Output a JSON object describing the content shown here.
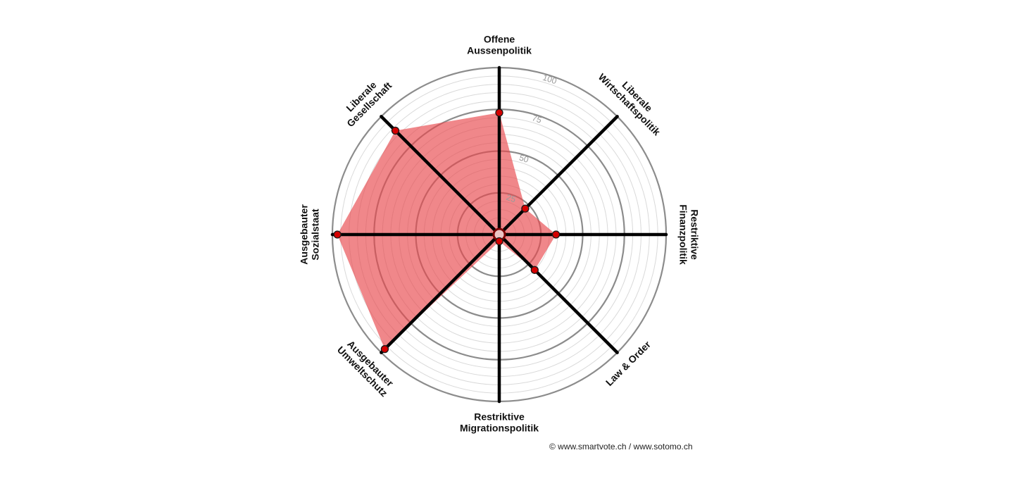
{
  "chart_data": {
    "type": "radar",
    "axes": [
      {
        "label": [
          "Offene",
          "Aussenpolitik"
        ],
        "value": 73
      },
      {
        "label": [
          "Liberale",
          "Wirtschaftspolitik"
        ],
        "value": 22
      },
      {
        "label": [
          "Restriktive",
          "Finanzpolitik"
        ],
        "value": 34
      },
      {
        "label": [
          "Law & Order"
        ],
        "value": 30
      },
      {
        "label": [
          "Restriktive",
          "Migrationspolitik"
        ],
        "value": 4
      },
      {
        "label": [
          "Ausgebauter",
          "Umweltschutz"
        ],
        "value": 97
      },
      {
        "label": [
          "Ausgebauter",
          "Sozialstaat"
        ],
        "value": 97
      },
      {
        "label": [
          "Liberale",
          "Gesellschaft"
        ],
        "value": 88
      }
    ],
    "rlim": [
      0,
      100
    ],
    "ticks": [
      "25",
      "50",
      "75",
      "100"
    ],
    "series_color": "#e8474b",
    "point_color": "#d40000",
    "credit": "© www.smartvote.ch / www.sotomo.ch"
  }
}
